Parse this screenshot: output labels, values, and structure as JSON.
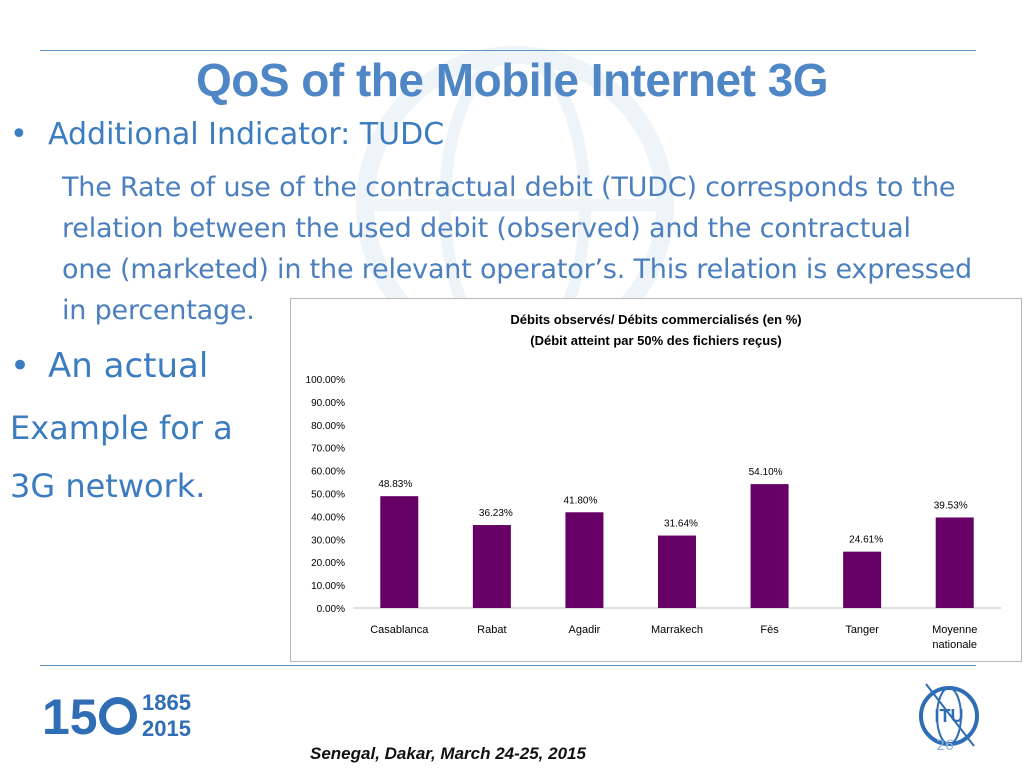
{
  "slide": {
    "title": "QoS of the Mobile Internet 3G",
    "bullet1": "Additional Indicator: TUDC",
    "paragraph_lines": [
      "The Rate of use of the contractual  debit (TUDC) corresponds to the",
      "relation between  the used debit (observed)  and  the contractual",
      "one (marketed) in the relevant operator’s. This relation  is expressed",
      "in percentage."
    ],
    "bullet2": "An actual",
    "example_lines": [
      "Example for a",
      "3G network."
    ],
    "bullet_glyph": "•",
    "footer": "Senegal, Dakar, March 24-25, 2015",
    "page_number": "26",
    "logo_150_text": "15",
    "logo_years": [
      "1865",
      "2015"
    ],
    "itu_text": "ITU",
    "colors": {
      "title": "#4f86c6",
      "text": "#3c7cc0",
      "bar": "#660066",
      "rule": "#5b93c8"
    }
  },
  "chart_data": {
    "type": "bar",
    "title": "Débits observés/ Débits commercialisés (en %)",
    "subtitle": "(Débit atteint par 50% des fichiers reçus)",
    "categories": [
      "Casablanca",
      "Rabat",
      "Agadir",
      "Marrakech",
      "Fès",
      "Tanger",
      "Moyenne nationale"
    ],
    "values": [
      48.83,
      36.23,
      41.8,
      31.64,
      54.1,
      24.61,
      39.53
    ],
    "data_labels": [
      "48.83%",
      "36.23%",
      "41.80%",
      "31.64%",
      "54.10%",
      "24.61%",
      "39.53%"
    ],
    "y_ticks": [
      "0.00%",
      "10.00%",
      "20.00%",
      "30.00%",
      "40.00%",
      "50.00%",
      "60.00%",
      "70.00%",
      "80.00%",
      "90.00%",
      "100.00%"
    ],
    "ylim": [
      0,
      100
    ],
    "grid": false,
    "legend": "none",
    "bar_color": "#660066"
  }
}
